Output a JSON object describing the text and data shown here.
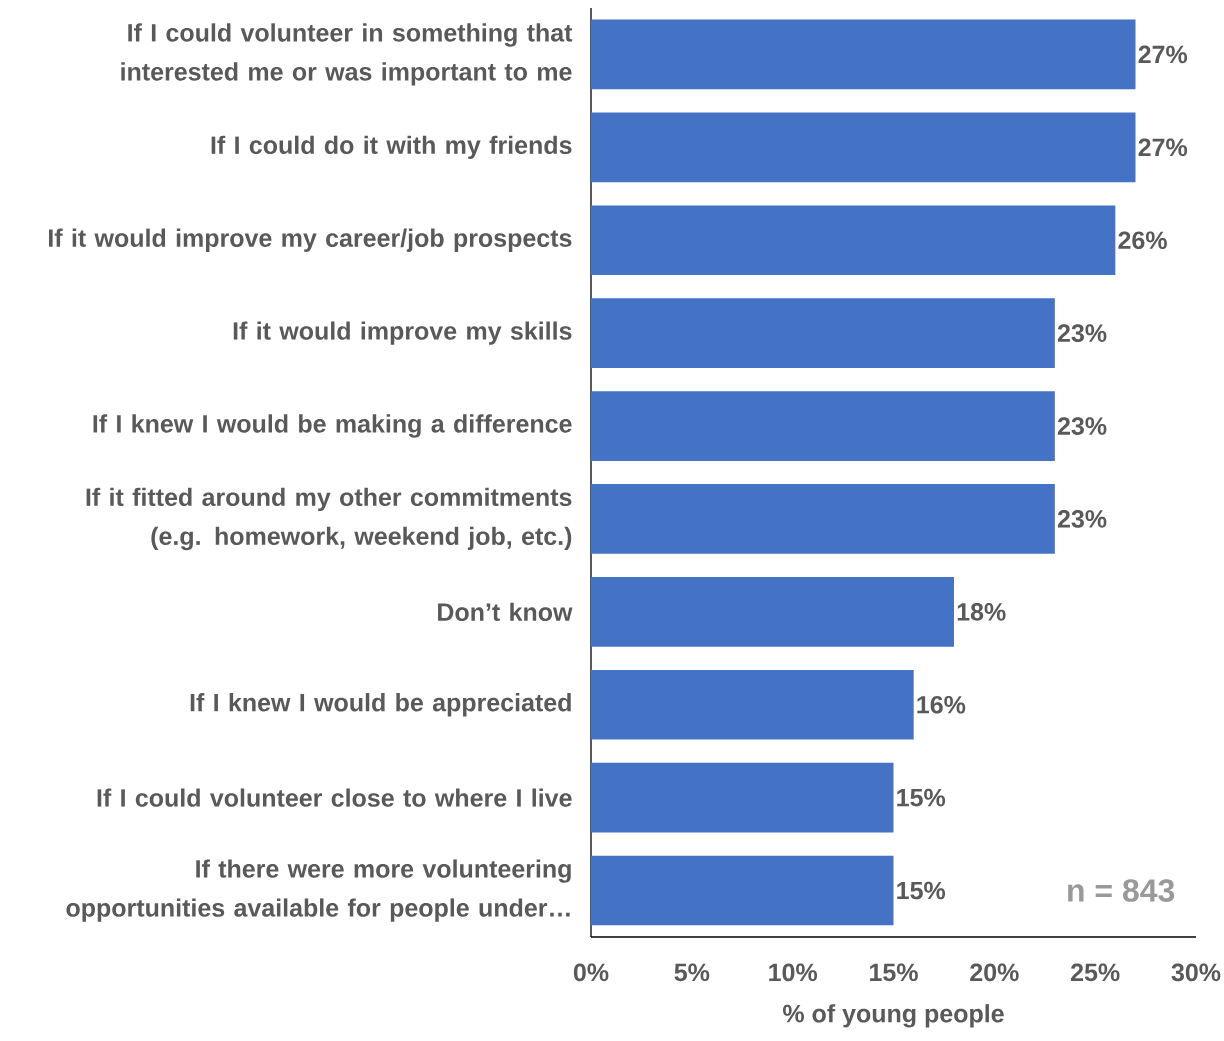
{
  "chart_data": {
    "type": "bar",
    "orientation": "horizontal",
    "xlabel": "% of young people",
    "categories": [
      "If I could volunteer in something that interested me or was important to me",
      "If I could do it with my friends",
      "If it would improve my career/job prospects",
      "If it would improve my skills",
      "If I knew I would be making a difference",
      "If it fitted around my other commitments (e.g. homework, weekend job, etc.)",
      "Don’t know",
      "If I knew I would be appreciated",
      "If I could volunteer close to where I live",
      "If there were more volunteering opportunities available for people under…"
    ],
    "values": [
      27,
      27,
      26,
      23,
      23,
      23,
      18,
      16,
      15,
      15
    ],
    "value_labels": [
      "27%",
      "27%",
      "26%",
      "23%",
      "23%",
      "23%",
      "18%",
      "16%",
      "15%",
      "15%"
    ],
    "color": "#4472c4",
    "xlim": [
      0,
      30
    ],
    "xticks": [
      {
        "value": 0,
        "label": "0%"
      },
      {
        "value": 5,
        "label": "5%"
      },
      {
        "value": 10,
        "label": "10%"
      },
      {
        "value": 15,
        "label": "15%"
      },
      {
        "value": 20,
        "label": "20%"
      },
      {
        "value": 25,
        "label": "25%"
      },
      {
        "value": 30,
        "label": "30%"
      }
    ],
    "annotations": [
      "n = 843"
    ],
    "grid": false
  }
}
